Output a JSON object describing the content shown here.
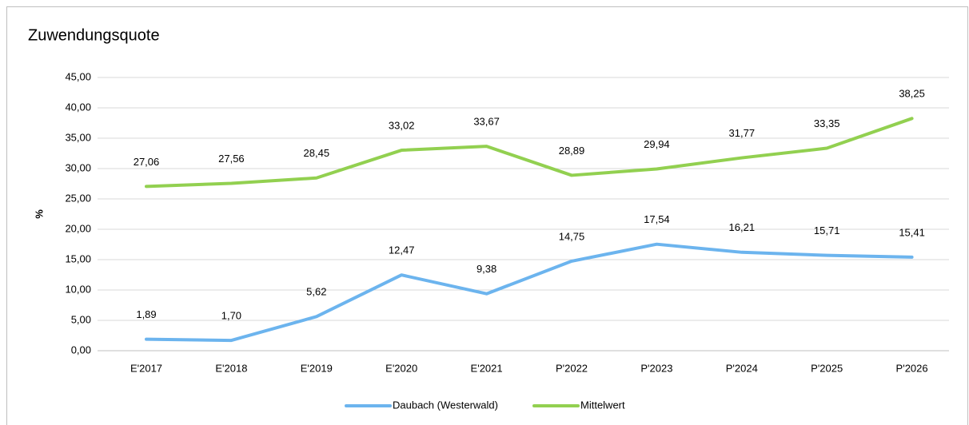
{
  "chart_data": {
    "type": "line",
    "title": "Zuwendungsquote",
    "y_label": "%",
    "categories": [
      "E'2017",
      "E'2018",
      "E'2019",
      "E'2020",
      "E'2021",
      "P'2022",
      "P'2023",
      "P'2024",
      "P'2025",
      "P'2026"
    ],
    "series": [
      {
        "name": "Daubach (Westerwald)",
        "color": "#6cb4ee",
        "values": [
          1.89,
          1.7,
          5.62,
          12.47,
          9.38,
          14.75,
          17.54,
          16.21,
          15.71,
          15.41
        ],
        "value_labels": [
          "1,89",
          "1,70",
          "5,62",
          "12,47",
          "9,38",
          "14,75",
          "17,54",
          "16,21",
          "15,71",
          "15,41"
        ]
      },
      {
        "name": "Mittelwert",
        "color": "#92d050",
        "values": [
          27.06,
          27.56,
          28.45,
          33.02,
          33.67,
          28.89,
          29.94,
          31.77,
          33.35,
          38.25
        ],
        "value_labels": [
          "27,06",
          "27,56",
          "28,45",
          "33,02",
          "33,67",
          "28,89",
          "29,94",
          "31,77",
          "33,35",
          "38,25"
        ]
      }
    ],
    "ylim": [
      0,
      45
    ],
    "yticks": [
      {
        "value": 0,
        "label": "0,00"
      },
      {
        "value": 5,
        "label": "5,00"
      },
      {
        "value": 10,
        "label": "10,00"
      },
      {
        "value": 15,
        "label": "15,00"
      },
      {
        "value": 20,
        "label": "20,00"
      },
      {
        "value": 25,
        "label": "25,00"
      },
      {
        "value": 30,
        "label": "30,00"
      },
      {
        "value": 35,
        "label": "35,00"
      },
      {
        "value": 40,
        "label": "40,00"
      },
      {
        "value": 45,
        "label": "45,00"
      }
    ],
    "grid": true,
    "legend": "bottom"
  }
}
